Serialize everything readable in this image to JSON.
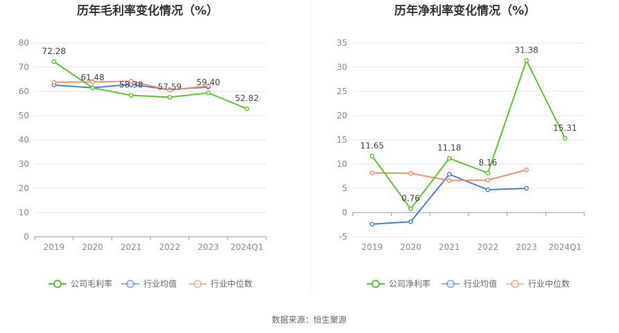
{
  "source": "数据来源：恒生聚源",
  "chart_data": [
    {
      "type": "line",
      "title": "历年毛利率变化情况（%）",
      "categories": [
        "2019",
        "2020",
        "2021",
        "2022",
        "2023",
        "2024Q1"
      ],
      "ylim": [
        0,
        80
      ],
      "yticks": [
        0,
        10,
        20,
        30,
        40,
        50,
        60,
        70,
        80
      ],
      "grid": true,
      "legend": "bottom",
      "series": [
        {
          "name": "公司毛利率",
          "color": "#5cc52a",
          "values": [
            72.28,
            61.48,
            58.38,
            57.59,
            59.4,
            52.82
          ],
          "labels": [
            "72.28",
            "61.48",
            "58.38",
            "57.59",
            "59.40",
            "52.82"
          ]
        },
        {
          "name": "行业均值",
          "color": "#4a7fe0",
          "values": [
            62.6,
            61.5,
            62.9,
            60.7,
            61.8,
            null
          ],
          "labels": []
        },
        {
          "name": "行业中位数",
          "color": "#f28f6c",
          "values": [
            63.8,
            63.9,
            64.2,
            60.5,
            62.3,
            null
          ],
          "labels": []
        }
      ]
    },
    {
      "type": "line",
      "title": "历年净利率变化情况（%）",
      "categories": [
        "2019",
        "2020",
        "2021",
        "2022",
        "2023",
        "2024Q1"
      ],
      "ylim": [
        -5,
        35
      ],
      "yticks": [
        -5,
        0,
        5,
        10,
        15,
        20,
        25,
        30,
        35
      ],
      "grid": true,
      "legend": "bottom",
      "series": [
        {
          "name": "公司净利率",
          "color": "#5cc52a",
          "values": [
            11.65,
            0.76,
            11.18,
            8.16,
            31.38,
            15.31
          ],
          "labels": [
            "11.65",
            "0.76",
            "11.18",
            "8.16",
            "31.38",
            "15.31"
          ]
        },
        {
          "name": "行业均值",
          "color": "#4a7fe0",
          "values": [
            -2.4,
            -1.9,
            7.9,
            4.7,
            5.0,
            null
          ],
          "labels": []
        },
        {
          "name": "行业中位数",
          "color": "#f28f6c",
          "values": [
            8.2,
            8.1,
            6.6,
            6.7,
            8.8,
            null
          ],
          "labels": []
        }
      ]
    }
  ]
}
